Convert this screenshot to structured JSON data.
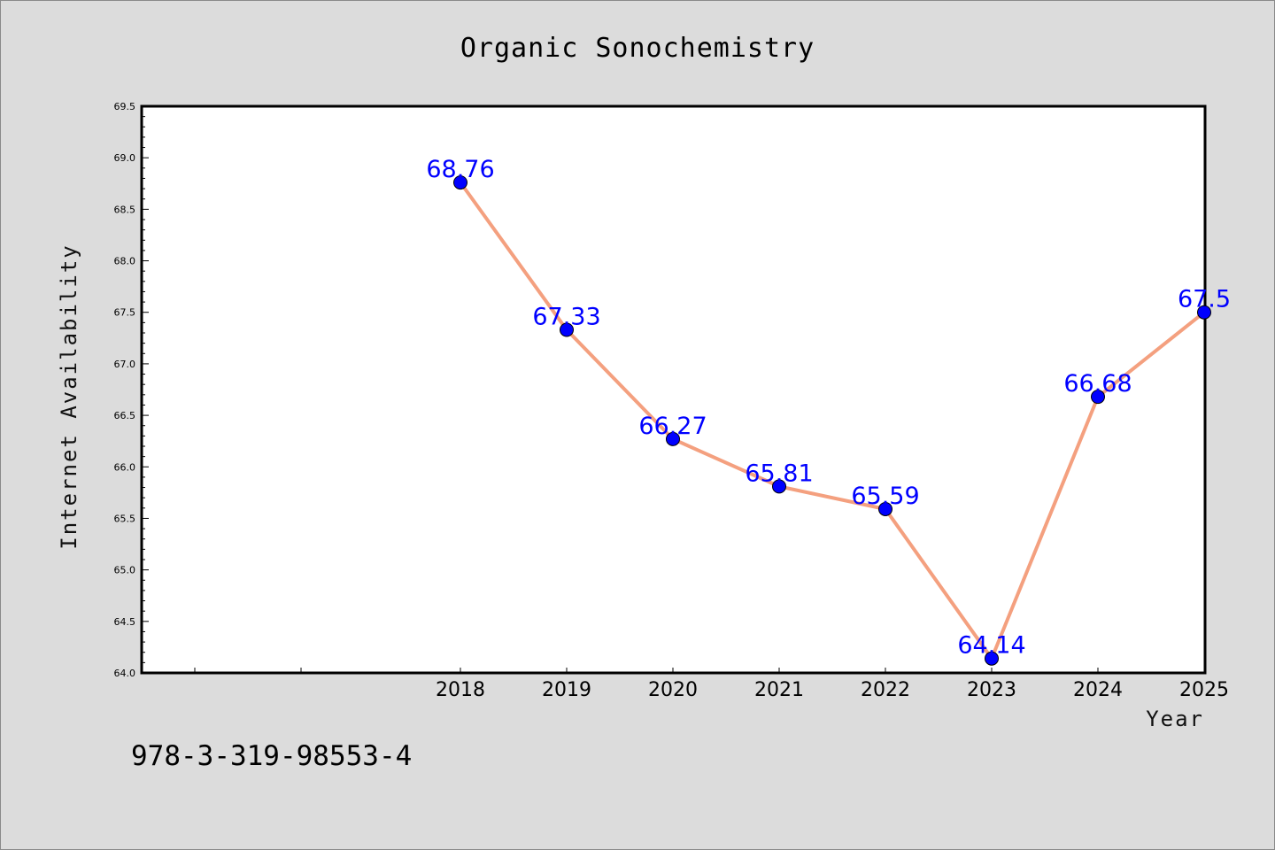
{
  "chart_data": {
    "type": "line",
    "title": "Organic Sonochemistry",
    "xlabel": "Year",
    "ylabel": "Internet Availability",
    "x": [
      "2018",
      "2019",
      "2020",
      "2021",
      "2022",
      "2023",
      "2024",
      "2025"
    ],
    "series": [
      {
        "values": [
          68.76,
          67.33,
          66.27,
          65.81,
          65.59,
          64.14,
          66.68,
          67.5
        ]
      }
    ],
    "data_labels": [
      "68.76",
      "67.33",
      "66.27",
      "65.81",
      "65.59",
      "64.14",
      "66.68",
      "67.5"
    ],
    "ylim": [
      64.0,
      69.5
    ],
    "yticks": [
      "64.0",
      "64.5",
      "65.0",
      "65.5",
      "66.0",
      "66.5",
      "67.0",
      "67.5",
      "68.0",
      "68.5",
      "69.0",
      "69.5"
    ],
    "grid": false,
    "legend": "none",
    "colors": {
      "line": "#f4a07f",
      "marker": "#0000ff",
      "data_label": "#0000ff"
    }
  },
  "footer": {
    "code": "978-3-319-98553-4"
  }
}
